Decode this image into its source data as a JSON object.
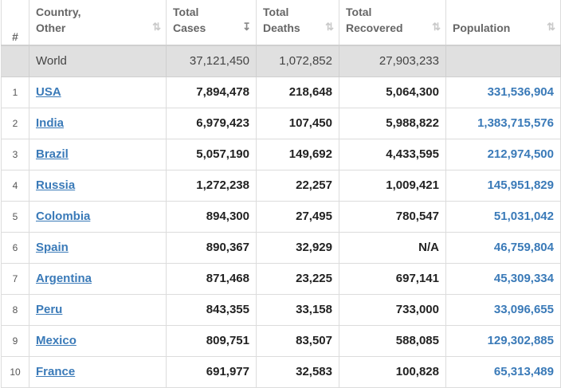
{
  "header": {
    "rank": "#",
    "country_line1": "Country,",
    "country_line2": "Other",
    "cases_line1": "Total",
    "cases_line2": "Cases",
    "deaths_line1": "Total",
    "deaths_line2": "Deaths",
    "recovered_line1": "Total",
    "recovered_line2": "Recovered",
    "population": "Population",
    "sort_icon": "⇅",
    "sort_active_icon": "↧"
  },
  "world": {
    "name": "World",
    "total_cases": "37,121,450",
    "total_deaths": "1,072,852",
    "total_recovered": "27,903,233",
    "population": ""
  },
  "rows": [
    {
      "rank": "1",
      "country": "USA",
      "total_cases": "7,894,478",
      "total_deaths": "218,648",
      "total_recovered": "5,064,300",
      "population": "331,536,904"
    },
    {
      "rank": "2",
      "country": "India",
      "total_cases": "6,979,423",
      "total_deaths": "107,450",
      "total_recovered": "5,988,822",
      "population": "1,383,715,576"
    },
    {
      "rank": "3",
      "country": "Brazil",
      "total_cases": "5,057,190",
      "total_deaths": "149,692",
      "total_recovered": "4,433,595",
      "population": "212,974,500"
    },
    {
      "rank": "4",
      "country": "Russia",
      "total_cases": "1,272,238",
      "total_deaths": "22,257",
      "total_recovered": "1,009,421",
      "population": "145,951,829"
    },
    {
      "rank": "5",
      "country": "Colombia",
      "total_cases": "894,300",
      "total_deaths": "27,495",
      "total_recovered": "780,547",
      "population": "51,031,042"
    },
    {
      "rank": "6",
      "country": "Spain",
      "total_cases": "890,367",
      "total_deaths": "32,929",
      "total_recovered": "N/A",
      "population": "46,759,804"
    },
    {
      "rank": "7",
      "country": "Argentina",
      "total_cases": "871,468",
      "total_deaths": "23,225",
      "total_recovered": "697,141",
      "population": "45,309,334"
    },
    {
      "rank": "8",
      "country": "Peru",
      "total_cases": "843,355",
      "total_deaths": "33,158",
      "total_recovered": "733,000",
      "population": "33,096,655"
    },
    {
      "rank": "9",
      "country": "Mexico",
      "total_cases": "809,751",
      "total_deaths": "83,507",
      "total_recovered": "588,085",
      "population": "129,302,885"
    },
    {
      "rank": "10",
      "country": "France",
      "total_cases": "691,977",
      "total_deaths": "32,583",
      "total_recovered": "100,828",
      "population": "65,313,489"
    }
  ],
  "colors": {
    "link": "#3a7ab8",
    "world_row_bg": "#e0e0e0",
    "border": "#dcdcdc"
  }
}
